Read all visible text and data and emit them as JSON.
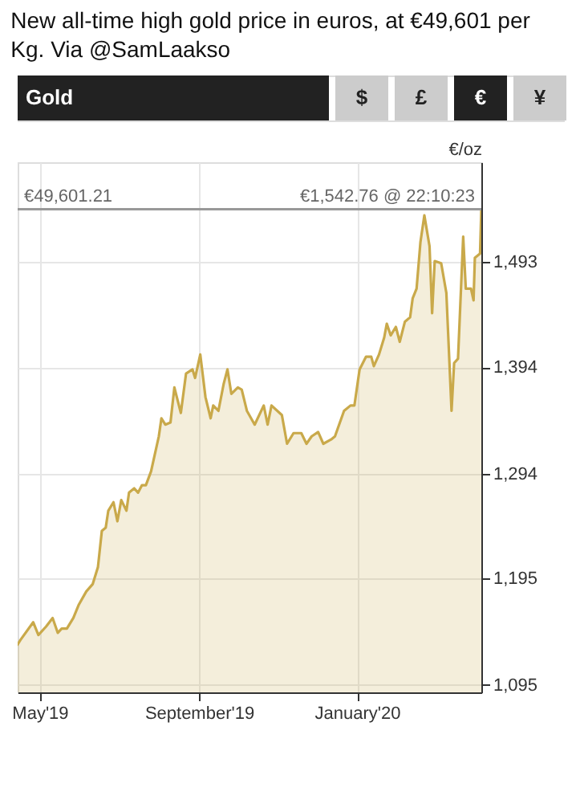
{
  "chart_data": {
    "type": "area",
    "title": "New all-time high gold price in euros, at €49,601 per Kg. Via @SamLaakso",
    "ylabel": "€/oz",
    "annotations": [
      "€49,601.21",
      "Gold",
      "$",
      "£",
      "€",
      "¥"
    ],
    "series": [
      {
        "color": "#c9a94a",
        "x": [
          "2019-04-14",
          "2019-04-16",
          "2019-04-26",
          "2019-04-30",
          "2019-05-06",
          "2019-05-11",
          "2019-05-15",
          "2019-05-18",
          "2019-05-22",
          "2019-05-27",
          "2019-05-31",
          "2019-06-06",
          "2019-06-11",
          "2019-06-15",
          "2019-06-18",
          "2019-06-21",
          "2019-06-23",
          "2019-06-27",
          "2019-06-30",
          "2019-07-03",
          "2019-07-07",
          "2019-07-09",
          "2019-07-13",
          "2019-07-16",
          "2019-07-19",
          "2019-07-22",
          "2019-07-26",
          "2019-08-01",
          "2019-08-03",
          "2019-08-06",
          "2019-08-10",
          "2019-08-13",
          "2019-08-18",
          "2019-08-22",
          "2019-08-27",
          "2019-08-29",
          "2019-09-02",
          "2019-09-06",
          "2019-09-10",
          "2019-09-12",
          "2019-09-16",
          "2019-09-20",
          "2019-09-23",
          "2019-09-26",
          "2019-10-01",
          "2019-10-04",
          "2019-10-08",
          "2019-10-14",
          "2019-10-21",
          "2019-10-24",
          "2019-10-27",
          "2019-11-04",
          "2019-11-08",
          "2019-11-13",
          "2019-11-19",
          "2019-11-23",
          "2019-11-27",
          "2019-12-02",
          "2019-12-06",
          "2019-12-12",
          "2019-12-15",
          "2019-12-22",
          "2019-12-27",
          "2019-12-30",
          "2020-01-03",
          "2020-01-08",
          "2020-01-12",
          "2020-01-14",
          "2020-01-18",
          "2020-01-22",
          "2020-01-24",
          "2020-01-27",
          "2020-01-31",
          "2020-02-03",
          "2020-02-07",
          "2020-02-11",
          "2020-02-13",
          "2020-02-16",
          "2020-02-19",
          "2020-02-22",
          "2020-02-26",
          "2020-02-28",
          "2020-03-01",
          "2020-03-06",
          "2020-03-10",
          "2020-03-14",
          "2020-03-16",
          "2020-03-19",
          "2020-03-23",
          "2020-03-25",
          "2020-03-29",
          "2020-03-31",
          "2020-04-01",
          "2020-04-05",
          "2020-04-06"
        ],
        "values": [
          1133,
          1137,
          1154,
          1142,
          1150,
          1158,
          1144,
          1148,
          1148,
          1158,
          1170,
          1183,
          1190,
          1206,
          1240,
          1243,
          1259,
          1267,
          1249,
          1269,
          1259,
          1276,
          1280,
          1276,
          1283,
          1283,
          1296,
          1329,
          1346,
          1340,
          1342,
          1375,
          1351,
          1388,
          1392,
          1384,
          1406,
          1366,
          1346,
          1358,
          1353,
          1378,
          1392,
          1369,
          1375,
          1373,
          1353,
          1340,
          1358,
          1340,
          1358,
          1349,
          1322,
          1332,
          1332,
          1322,
          1329,
          1333,
          1322,
          1326,
          1329,
          1353,
          1358,
          1358,
          1392,
          1404,
          1404,
          1395,
          1406,
          1422,
          1435,
          1424,
          1432,
          1418,
          1437,
          1441,
          1459,
          1468,
          1512,
          1537,
          1508,
          1445,
          1494,
          1492,
          1464,
          1353,
          1398,
          1402,
          1517,
          1468,
          1468,
          1457,
          1497,
          1501,
          1542.76
        ]
      }
    ],
    "xlim": [
      "2019-04-14",
      "2020-04-06"
    ],
    "xticks": [
      {
        "value": "2019-05-01",
        "label": "May'19"
      },
      {
        "value": "2019-09-01",
        "label": "September'19"
      },
      {
        "value": "2020-01-01",
        "label": "January'20"
      }
    ],
    "ylim": [
      1088,
      1587
    ],
    "yticks": [
      {
        "value": 1095,
        "label": "1,095"
      },
      {
        "value": 1195,
        "label": "1,195"
      },
      {
        "value": 1294,
        "label": "1,294"
      },
      {
        "value": 1394,
        "label": "1,394"
      },
      {
        "value": 1493,
        "label": "1,493"
      }
    ],
    "ref_lines": [
      {
        "axis": "y",
        "value": 1542.76,
        "label": "€1,542.76 @ 22:10:23",
        "color": "#999999"
      }
    ],
    "grid": true
  }
}
